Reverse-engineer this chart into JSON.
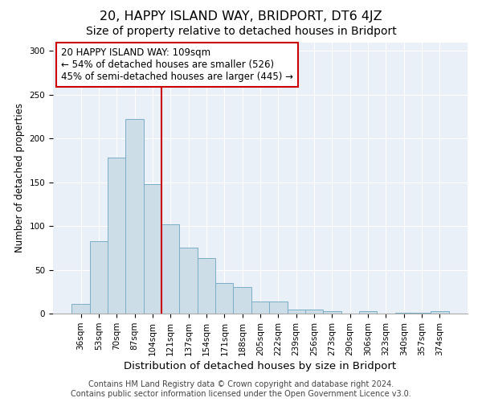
{
  "title": "20, HAPPY ISLAND WAY, BRIDPORT, DT6 4JZ",
  "subtitle": "Size of property relative to detached houses in Bridport",
  "xlabel": "Distribution of detached houses by size in Bridport",
  "ylabel": "Number of detached properties",
  "categories": [
    "36sqm",
    "53sqm",
    "70sqm",
    "87sqm",
    "104sqm",
    "121sqm",
    "137sqm",
    "154sqm",
    "171sqm",
    "188sqm",
    "205sqm",
    "222sqm",
    "239sqm",
    "256sqm",
    "273sqm",
    "290sqm",
    "306sqm",
    "323sqm",
    "340sqm",
    "357sqm",
    "374sqm"
  ],
  "values": [
    11,
    83,
    178,
    222,
    148,
    102,
    75,
    63,
    35,
    30,
    14,
    14,
    5,
    5,
    3,
    0,
    3,
    0,
    1,
    1,
    3
  ],
  "bar_color": "#ccdde8",
  "bar_edge_color": "#7aaec8",
  "vline_color": "#cc0000",
  "annotation_line1": "20 HAPPY ISLAND WAY: 109sqm",
  "annotation_line2": "← 54% of detached houses are smaller (526)",
  "annotation_line3": "45% of semi-detached houses are larger (445) →",
  "annotation_box_color": "#ffffff",
  "annotation_box_edge": "#cc0000",
  "ylim": [
    0,
    310
  ],
  "yticks": [
    0,
    50,
    100,
    150,
    200,
    250,
    300
  ],
  "background_color": "#eaf0f8",
  "footer_line1": "Contains HM Land Registry data © Crown copyright and database right 2024.",
  "footer_line2": "Contains public sector information licensed under the Open Government Licence v3.0.",
  "title_fontsize": 11.5,
  "subtitle_fontsize": 10,
  "xlabel_fontsize": 9.5,
  "ylabel_fontsize": 8.5,
  "tick_fontsize": 7.5,
  "annot_fontsize": 8.5,
  "footer_fontsize": 7
}
